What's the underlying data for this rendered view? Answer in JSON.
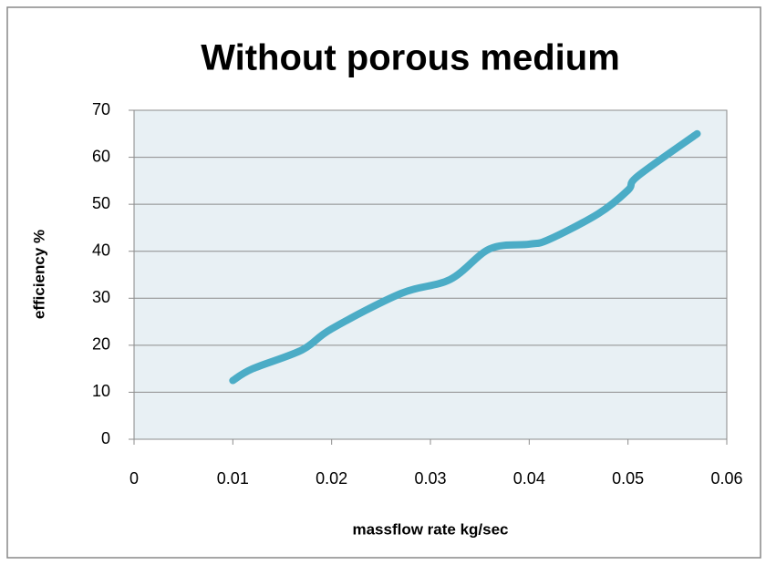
{
  "chart_data": {
    "type": "line",
    "title": "Without porous medium",
    "x_label": "massflow rate kg/sec",
    "y_label": "efficiency %",
    "x": [
      0.01,
      0.012,
      0.017,
      0.02,
      0.027,
      0.032,
      0.036,
      0.04,
      0.042,
      0.047,
      0.05,
      0.051,
      0.057
    ],
    "series": [
      {
        "name": "efficiency",
        "color": "#4bacc6",
        "values": [
          12.5,
          15,
          19,
          23.5,
          31,
          34,
          40.5,
          41.5,
          42.5,
          48,
          53,
          56,
          65
        ]
      }
    ],
    "xlim": [
      0,
      0.06
    ],
    "xticks": [
      0,
      0.01,
      0.02,
      0.03,
      0.04,
      0.05,
      0.06
    ],
    "ylim": [
      0,
      70
    ],
    "yticks": [
      0,
      10,
      20,
      30,
      40,
      50,
      60,
      70
    ],
    "grid": true,
    "smooth": true
  }
}
